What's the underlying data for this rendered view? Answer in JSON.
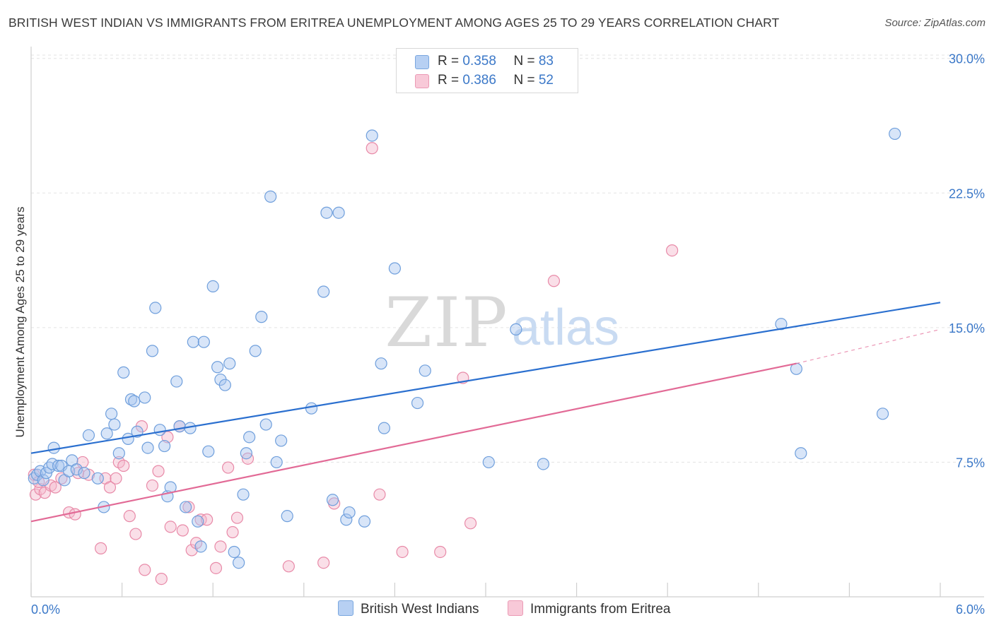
{
  "title": "BRITISH WEST INDIAN VS IMMIGRANTS FROM ERITREA UNEMPLOYMENT AMONG AGES 25 TO 29 YEARS CORRELATION CHART",
  "source": "Source: ZipAtlas.com",
  "watermark": {
    "zip": "ZIP",
    "atlas": "atlas"
  },
  "legend": {
    "rows": [
      {
        "r_label": "R = ",
        "r_value": "0.358",
        "n_label": "N = ",
        "n_value": "83"
      },
      {
        "r_label": "R = ",
        "r_value": "0.386",
        "n_label": "N = ",
        "n_value": "52"
      }
    ]
  },
  "bottom_legend": [
    "British West Indians",
    "Immigrants from Eritrea"
  ],
  "colors": {
    "blue_fill": "#a8c6f0",
    "blue_stroke": "#6f9fdc",
    "blue_line": "#2a6fcf",
    "pink_fill": "#f5b8cc",
    "pink_stroke": "#e88aa8",
    "pink_line": "#e26a96",
    "axis_text": "#3b78c8",
    "grid": "#e3e3e3"
  },
  "chart_data": {
    "type": "scatter",
    "title": "BRITISH WEST INDIAN VS IMMIGRANTS FROM ERITREA UNEMPLOYMENT AMONG AGES 25 TO 29 YEARS CORRELATION CHART",
    "xlabel": "",
    "ylabel": "Unemployment Among Ages 25 to 29 years",
    "xlim": [
      0,
      6.0
    ],
    "ylim": [
      0,
      30.5
    ],
    "x_tick_labels": [
      "0.0%",
      "6.0%"
    ],
    "y_ticks": [
      7.5,
      15.0,
      22.5,
      30.0
    ],
    "y_tick_labels": [
      "7.5%",
      "15.0%",
      "22.5%",
      "30.0%"
    ],
    "grid": "horizontal dashed",
    "legend_position": "top-center",
    "series": [
      {
        "name": "British West Indians",
        "R": 0.358,
        "N": 83,
        "trend": {
          "x": [
            0.0,
            6.0
          ],
          "y": [
            8.0,
            16.4
          ]
        },
        "points": [
          [
            0.02,
            6.6
          ],
          [
            0.04,
            6.8
          ],
          [
            0.06,
            7.0
          ],
          [
            0.08,
            6.5
          ],
          [
            0.1,
            6.9
          ],
          [
            0.12,
            7.2
          ],
          [
            0.14,
            7.4
          ],
          [
            0.15,
            8.3
          ],
          [
            0.18,
            7.3
          ],
          [
            0.2,
            7.3
          ],
          [
            0.22,
            6.5
          ],
          [
            0.25,
            7.0
          ],
          [
            0.27,
            7.6
          ],
          [
            0.3,
            7.1
          ],
          [
            0.35,
            6.9
          ],
          [
            0.38,
            9.0
          ],
          [
            0.44,
            6.6
          ],
          [
            0.48,
            5.0
          ],
          [
            0.5,
            9.1
          ],
          [
            0.53,
            10.2
          ],
          [
            0.55,
            9.6
          ],
          [
            0.58,
            8.0
          ],
          [
            0.61,
            12.5
          ],
          [
            0.64,
            8.8
          ],
          [
            0.66,
            11.0
          ],
          [
            0.68,
            10.9
          ],
          [
            0.7,
            9.2
          ],
          [
            0.75,
            11.1
          ],
          [
            0.77,
            8.3
          ],
          [
            0.8,
            13.7
          ],
          [
            0.82,
            16.1
          ],
          [
            0.85,
            9.3
          ],
          [
            0.88,
            8.4
          ],
          [
            0.9,
            5.6
          ],
          [
            0.92,
            6.1
          ],
          [
            0.96,
            12.0
          ],
          [
            0.98,
            9.5
          ],
          [
            1.02,
            5.0
          ],
          [
            1.05,
            9.4
          ],
          [
            1.07,
            14.2
          ],
          [
            1.1,
            4.2
          ],
          [
            1.12,
            2.8
          ],
          [
            1.14,
            14.2
          ],
          [
            1.17,
            8.1
          ],
          [
            1.2,
            17.3
          ],
          [
            1.23,
            12.8
          ],
          [
            1.25,
            12.1
          ],
          [
            1.28,
            11.8
          ],
          [
            1.31,
            13.0
          ],
          [
            1.34,
            2.5
          ],
          [
            1.37,
            1.9
          ],
          [
            1.4,
            5.7
          ],
          [
            1.42,
            8.0
          ],
          [
            1.44,
            8.9
          ],
          [
            1.48,
            13.7
          ],
          [
            1.52,
            15.6
          ],
          [
            1.55,
            9.6
          ],
          [
            1.58,
            22.3
          ],
          [
            1.62,
            7.5
          ],
          [
            1.65,
            8.7
          ],
          [
            1.69,
            4.5
          ],
          [
            1.85,
            10.5
          ],
          [
            1.93,
            17.0
          ],
          [
            1.95,
            21.4
          ],
          [
            1.99,
            5.4
          ],
          [
            2.03,
            21.4
          ],
          [
            2.08,
            4.3
          ],
          [
            2.1,
            4.7
          ],
          [
            2.2,
            4.2
          ],
          [
            2.25,
            25.7
          ],
          [
            2.31,
            13.0
          ],
          [
            2.33,
            9.4
          ],
          [
            2.4,
            18.3
          ],
          [
            2.55,
            10.8
          ],
          [
            2.6,
            12.6
          ],
          [
            3.02,
            7.5
          ],
          [
            3.2,
            14.9
          ],
          [
            3.38,
            7.4
          ],
          [
            4.95,
            15.2
          ],
          [
            5.05,
            12.7
          ],
          [
            5.08,
            8.0
          ],
          [
            5.62,
            10.2
          ],
          [
            5.7,
            25.8
          ]
        ]
      },
      {
        "name": "Immigrants from Eritrea",
        "R": 0.386,
        "N": 52,
        "trend": {
          "x": [
            0.0,
            5.05
          ],
          "y": [
            4.2,
            13.0
          ]
        },
        "dashed_extension": {
          "x": [
            5.05,
            6.0
          ],
          "y": [
            13.0,
            14.9
          ]
        },
        "points": [
          [
            0.03,
            5.7
          ],
          [
            0.06,
            6.0
          ],
          [
            0.09,
            5.8
          ],
          [
            0.13,
            6.2
          ],
          [
            0.16,
            6.1
          ],
          [
            0.2,
            6.6
          ],
          [
            0.25,
            4.7
          ],
          [
            0.29,
            4.6
          ],
          [
            0.31,
            6.9
          ],
          [
            0.34,
            7.5
          ],
          [
            0.38,
            6.8
          ],
          [
            0.46,
            2.7
          ],
          [
            0.49,
            6.6
          ],
          [
            0.52,
            6.1
          ],
          [
            0.56,
            6.6
          ],
          [
            0.58,
            7.5
          ],
          [
            0.61,
            7.3
          ],
          [
            0.65,
            4.5
          ],
          [
            0.69,
            3.5
          ],
          [
            0.73,
            9.5
          ],
          [
            0.75,
            1.5
          ],
          [
            0.8,
            6.2
          ],
          [
            0.84,
            7.0
          ],
          [
            0.86,
            1.0
          ],
          [
            0.9,
            8.9
          ],
          [
            0.92,
            3.9
          ],
          [
            0.98,
            9.5
          ],
          [
            1.0,
            3.7
          ],
          [
            1.04,
            5.0
          ],
          [
            1.06,
            2.6
          ],
          [
            1.09,
            3.0
          ],
          [
            1.12,
            4.3
          ],
          [
            1.16,
            4.3
          ],
          [
            1.22,
            1.6
          ],
          [
            1.25,
            2.8
          ],
          [
            1.3,
            7.2
          ],
          [
            1.33,
            3.6
          ],
          [
            1.36,
            4.4
          ],
          [
            1.43,
            7.7
          ],
          [
            1.7,
            1.7
          ],
          [
            1.93,
            1.9
          ],
          [
            2.0,
            5.2
          ],
          [
            2.25,
            25.0
          ],
          [
            2.3,
            5.7
          ],
          [
            2.45,
            2.5
          ],
          [
            2.7,
            2.5
          ],
          [
            2.85,
            12.2
          ],
          [
            2.9,
            4.1
          ],
          [
            3.45,
            17.6
          ],
          [
            4.23,
            19.3
          ],
          [
            0.02,
            6.8
          ],
          [
            0.05,
            6.4
          ]
        ]
      }
    ]
  }
}
